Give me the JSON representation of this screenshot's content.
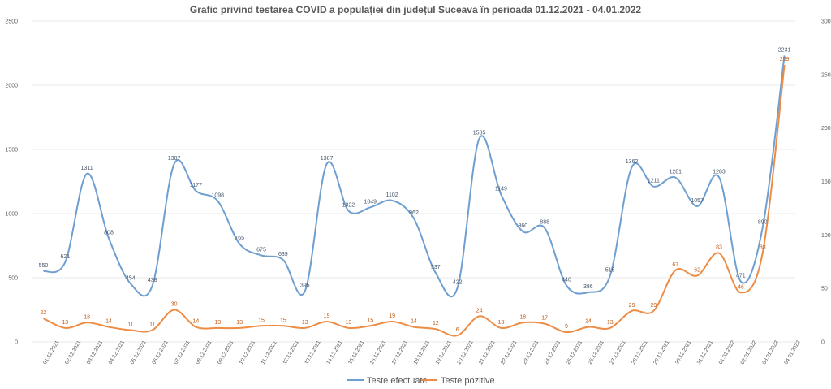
{
  "chart_data": {
    "type": "line",
    "title": "Grafic privind testarea COVID a populației din județul Suceava în perioada 01.12.2021  - 04.01.2022",
    "categories": [
      "01.12.2021",
      "02.12.2021",
      "03.12.2021",
      "04.12.2021",
      "05.12.2021",
      "06.12.2021",
      "07.12.2021",
      "08.12.2021",
      "09.12.2021",
      "10.12.2021",
      "11.12.2021",
      "12.12.2021",
      "13.12.2021",
      "14.12.2021",
      "15.12.2021",
      "16.12.2021",
      "17.12.2021",
      "18.12.2021",
      "19.12.2021",
      "20.12.2021",
      "21.12.2021",
      "22.12.2021",
      "23.12.2021",
      "24.12.2021",
      "25.12.2021",
      "26.12.2021",
      "27.12.2021",
      "28.12.2021",
      "29.12.2021",
      "30.12.2021",
      "31.12.2021",
      "01.01.2022",
      "02.01.2022",
      "03.01.2022",
      "04.01.2022"
    ],
    "y_left_ticks": [
      "0",
      "500",
      "1000",
      "1500",
      "2000",
      "2500"
    ],
    "y_right_ticks": [
      "0",
      "50",
      "100",
      "150",
      "200",
      "250",
      "300"
    ],
    "ylim_left": [
      0,
      2500
    ],
    "ylim_right": [
      0,
      300
    ],
    "grid": true,
    "legend_position": "bottom",
    "series": [
      {
        "name": "Teste efectuate",
        "axis": "left",
        "color": "#6e9fd0",
        "values": [
          550,
          621,
          1311,
          808,
          454,
          438,
          1387,
          1177,
          1098,
          765,
          675,
          639,
          395,
          1387,
          1022,
          1049,
          1102,
          962,
          537,
          422,
          1585,
          1149,
          860,
          888,
          440,
          386,
          515,
          1362,
          1211,
          1281,
          1057,
          1283,
          471,
          890,
          2231
        ],
        "labels": [
          "550",
          "621",
          "1311",
          "808",
          "454",
          "438",
          "1387",
          "1177",
          "1098",
          "765",
          "675",
          "639",
          "395",
          "1387",
          "1022",
          "1049",
          "1102",
          "962",
          "537",
          "422",
          "1585",
          "1149",
          "860",
          "888",
          "440",
          "386",
          "515",
          "1362",
          "1211",
          "1281",
          "1057",
          "1283",
          "471",
          "890",
          "2231"
        ]
      },
      {
        "name": "Teste pozitive",
        "axis": "right",
        "color": "#ed8c45",
        "values": [
          22,
          13,
          18,
          14,
          11,
          11,
          30,
          14,
          13,
          13,
          15,
          15,
          13,
          19,
          13,
          15,
          19,
          14,
          12,
          6,
          24,
          13,
          18,
          17,
          9,
          14,
          13,
          29,
          29,
          67,
          62,
          83,
          46,
          83,
          259
        ],
        "labels": [
          "22",
          "13",
          "18",
          "14",
          "11",
          "11",
          "30",
          "14",
          "13",
          "13",
          "15",
          "15",
          "13",
          "19",
          "13",
          "15",
          "19",
          "14",
          "12",
          "6",
          "24",
          "13",
          "18",
          "17",
          "9",
          "14",
          "13",
          "29",
          "29",
          "67",
          "62",
          "83",
          "46",
          "83",
          "259"
        ]
      }
    ]
  }
}
